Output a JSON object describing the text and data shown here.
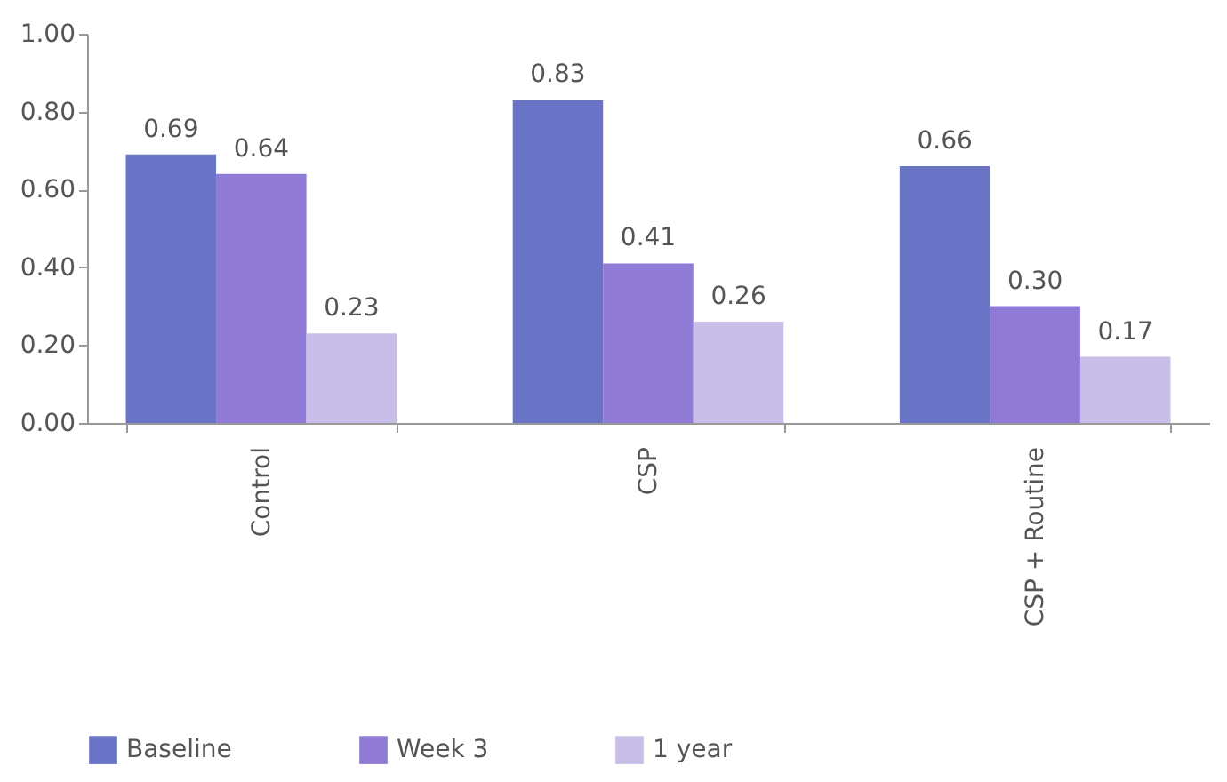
{
  "chart_data": {
    "type": "bar",
    "categories": [
      "Control",
      "CSP",
      "CSP + Routine"
    ],
    "series": [
      {
        "name": "Baseline",
        "color": "#6a74c6",
        "values": [
          0.69,
          0.83,
          0.66
        ],
        "value_labels": [
          "0.69",
          "0.83",
          "0.66"
        ]
      },
      {
        "name": "Week 3",
        "color": "#8f7bd6",
        "values": [
          0.64,
          0.41,
          0.3
        ],
        "value_labels": [
          "0.64",
          "0.41",
          "0.30"
        ]
      },
      {
        "name": "1 year",
        "color": "#c8bee8",
        "values": [
          0.23,
          0.26,
          0.17
        ],
        "value_labels": [
          "0.23",
          "0.26",
          "0.17"
        ]
      }
    ],
    "ylim": [
      0,
      1
    ],
    "yticks": [
      {
        "value": 0,
        "label": "0.00"
      },
      {
        "value": 0.2,
        "label": "0.20"
      },
      {
        "value": 0.4,
        "label": "0.40"
      },
      {
        "value": 0.6,
        "label": "0.60"
      },
      {
        "value": 0.8,
        "label": "0.80"
      },
      {
        "value": 1,
        "label": "1.00"
      }
    ],
    "grid": false,
    "legend": "bottom"
  }
}
